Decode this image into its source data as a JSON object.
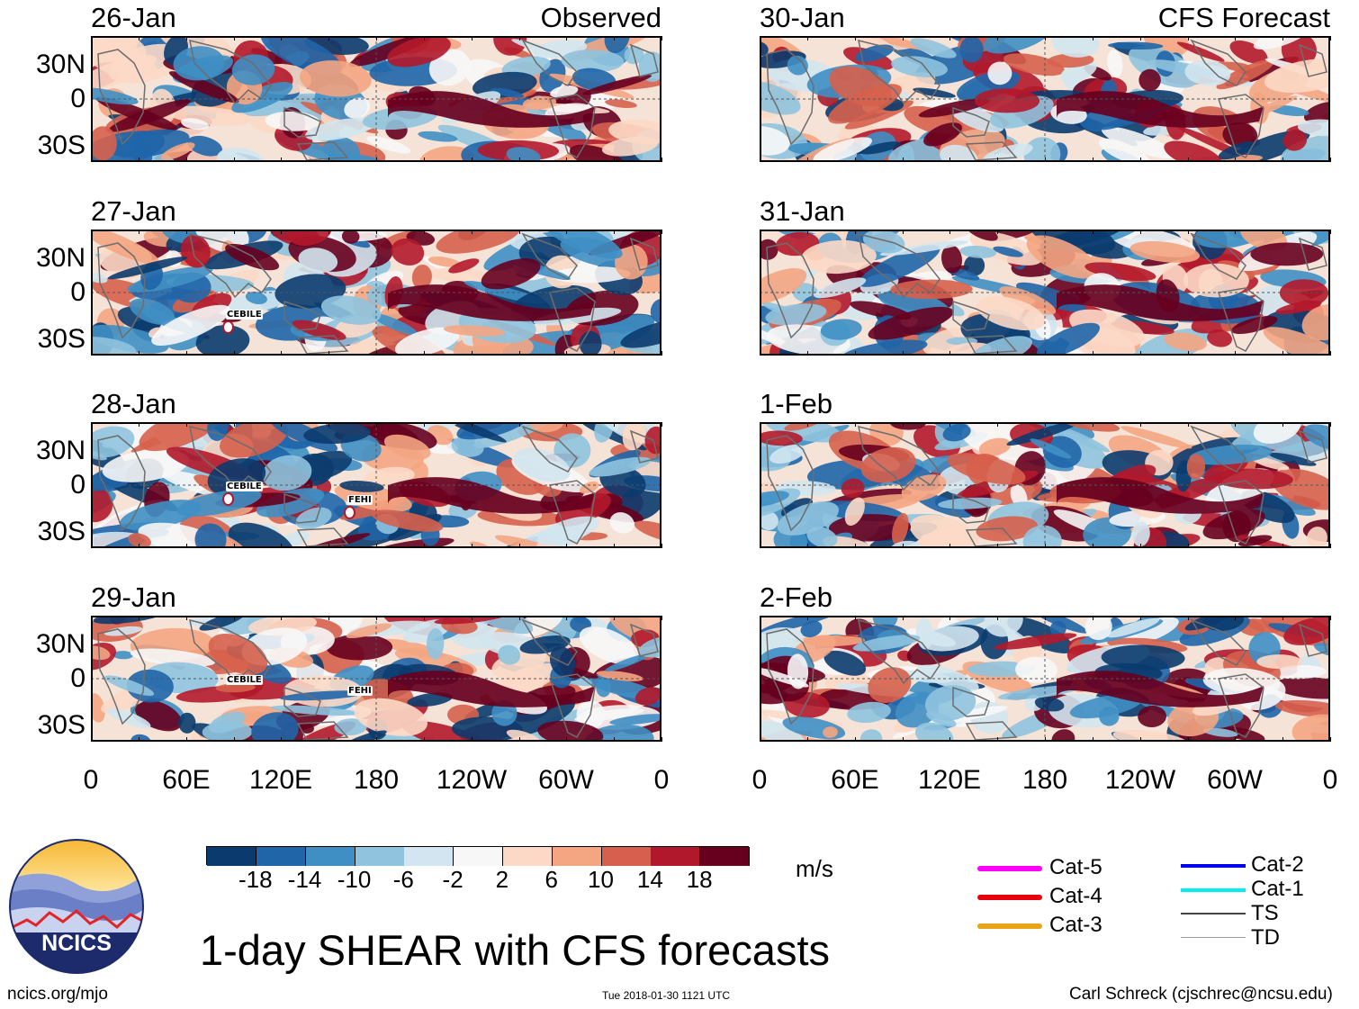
{
  "observed_label": "Observed",
  "forecast_label": "CFS Forecast",
  "lat_labels": [
    "30N",
    "0",
    "30S"
  ],
  "lon_labels": [
    "0",
    "60E",
    "120E",
    "180",
    "120W",
    "60W",
    "0"
  ],
  "panels_left": [
    {
      "date": "26-Jan",
      "storms": []
    },
    {
      "date": "27-Jan",
      "storms": [
        "CEBILE"
      ]
    },
    {
      "date": "28-Jan",
      "storms": [
        "CEBILE",
        "FEHI"
      ]
    },
    {
      "date": "29-Jan",
      "storms": [
        "CEBILE",
        "FEHI"
      ]
    }
  ],
  "panels_right": [
    {
      "date": "30-Jan"
    },
    {
      "date": "31-Jan"
    },
    {
      "date": "1-Feb"
    },
    {
      "date": "2-Feb"
    }
  ],
  "colorbar": {
    "ticks": [
      "-18",
      "-14",
      "-10",
      "-6",
      "-2",
      "2",
      "6",
      "10",
      "14",
      "18"
    ],
    "colors": [
      "#0b3b6e",
      "#1f65a8",
      "#3f8fc4",
      "#8fc3de",
      "#d2e5f0",
      "#f7f7f7",
      "#fcd9c6",
      "#f4a582",
      "#d6604d",
      "#b2182b",
      "#67001f"
    ],
    "units": "m/s"
  },
  "legend": {
    "col1": [
      {
        "label": "Cat-5",
        "color": "#ff00ff"
      },
      {
        "label": "Cat-4",
        "color": "#e8000b"
      },
      {
        "label": "Cat-3",
        "color": "#e8a317"
      }
    ],
    "col2": [
      {
        "label": "Cat-2",
        "color": "#0000ee"
      },
      {
        "label": "Cat-1",
        "color": "#00eeee"
      },
      {
        "label": "TS",
        "color": "#444444"
      },
      {
        "label": "TD",
        "color": "#999999"
      }
    ]
  },
  "logo_text": "NCICS",
  "main_title": "1-day SHEAR with CFS forecasts",
  "footer": {
    "left": "ncics.org/mjo",
    "center": "Tue 2018-01-30 1121 UTC",
    "right": "Carl Schreck (cjschrec@ncsu.edu)"
  }
}
